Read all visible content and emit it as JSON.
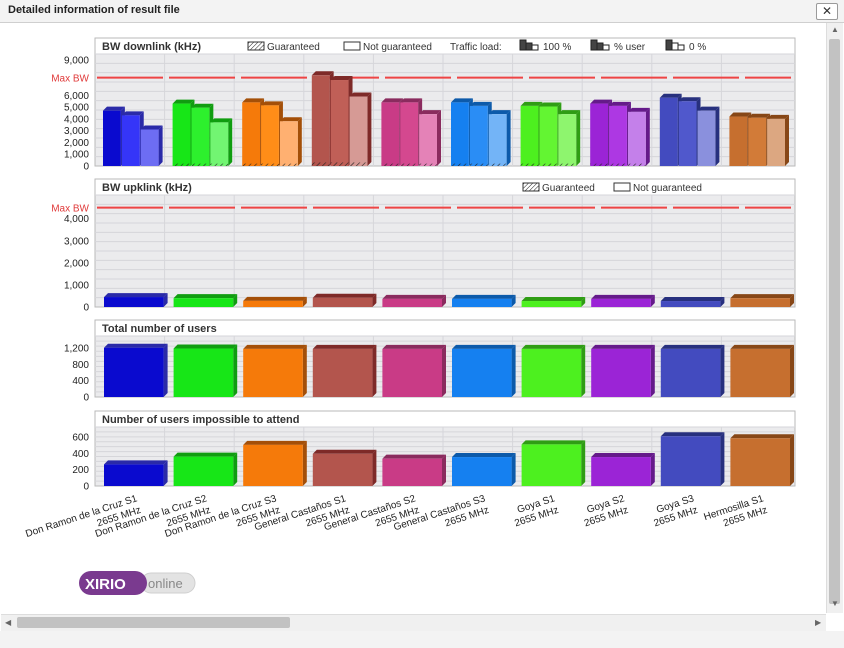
{
  "window": {
    "title": "Detailed information of result file",
    "close_label": "✕"
  },
  "logo": {
    "brand": "XIRIO",
    "suffix": "online"
  },
  "categories": [
    [
      "Don Ramon de la Cruz S1",
      "2655 MHz"
    ],
    [
      "Don Ramon de la Cruz S2",
      "2655 MHz"
    ],
    [
      "Don Ramon de la Cruz S3",
      "2655 MHz"
    ],
    [
      "General Castaños S1",
      "2655 MHz"
    ],
    [
      "General Castaños S2",
      "2655 MHz"
    ],
    [
      "General Castaños S3",
      "2655 MHz"
    ],
    [
      "Goya S1",
      "2655 MHz"
    ],
    [
      "Goya S2",
      "2655 MHz"
    ],
    [
      "Goya S3",
      "2655 MHz"
    ],
    [
      "Hermosilla S1",
      "2655 MHz"
    ]
  ],
  "colors": {
    "main": [
      "#0a0acf",
      "#17e617",
      "#f57a0a",
      "#b3554d",
      "#c93b86",
      "#1580f0",
      "#4df01f",
      "#9b24d6",
      "#434bbf",
      "#c66f2f"
    ],
    "light": [
      "#3535f8",
      "#2df02d",
      "#ff8d18",
      "#c05f57",
      "#d4488f",
      "#2a8df5",
      "#63f532",
      "#ad38e3",
      "#5058cc",
      "#d27b38"
    ],
    "high": [
      "#2a2aa8",
      "#109d10",
      "#a44f08",
      "#7e2a28",
      "#8a2b5e",
      "#0c5aaa",
      "#2f9d14",
      "#651a8a",
      "#27307e",
      "#874717"
    ],
    "low": [
      "#6d6df3",
      "#72f572",
      "#ffb071",
      "#d69a95",
      "#e482b7",
      "#73b4f7",
      "#8ef56e",
      "#c480ea",
      "#8a90dd",
      "#dca781"
    ],
    "maxbw": "#ee4444"
  },
  "chart_data": [
    {
      "type": "bar",
      "title": "BW downlink (kHz)",
      "ylim": [
        0,
        9000
      ],
      "yticks": [
        "0",
        "1,000",
        "2,000",
        "3,000",
        "4,000",
        "5,000",
        "6,000",
        "9,000"
      ],
      "ytick_values": [
        0,
        1000,
        2000,
        3000,
        4000,
        5000,
        6000,
        9000
      ],
      "max_bw_label": "Max BW",
      "max_bw_value": 7500,
      "legend": {
        "guaranteed": "Guaranteed",
        "not_guaranteed": "Not guaranteed",
        "traffic_load": "Traffic load:",
        "load_100": "100 %",
        "load_user": "% user",
        "load_0": "0 %"
      },
      "series": [
        {
          "name": "100 %",
          "values": [
            4700,
            5300,
            5400,
            7700,
            5400,
            5400,
            5100,
            5300,
            5800,
            4200
          ]
        },
        {
          "name": "% user",
          "values": [
            4300,
            4950,
            5150,
            7300,
            5400,
            5100,
            5050,
            5100,
            5500,
            4100
          ]
        },
        {
          "name": "0 %",
          "values": [
            3100,
            3700,
            3800,
            5900,
            4400,
            4400,
            4400,
            4600,
            4700,
            4000
          ]
        }
      ],
      "guaranteed_values": [
        0,
        200,
        200,
        300,
        200,
        200,
        200,
        200,
        0,
        0
      ]
    },
    {
      "type": "bar",
      "title": "BW upklink (kHz)",
      "ylim": [
        0,
        4800
      ],
      "yticks": [
        "0",
        "1,000",
        "2,000",
        "3,000",
        "4,000"
      ],
      "ytick_values": [
        0,
        1000,
        2000,
        3000,
        4000
      ],
      "max_bw_label": "Max BW",
      "max_bw_value": 4500,
      "legend": {
        "guaranteed": "Guaranteed",
        "not_guaranteed": "Not guaranteed"
      },
      "series": [
        {
          "name": "",
          "values": [
            450,
            400,
            280,
            420,
            370,
            370,
            270,
            370,
            270,
            400
          ]
        }
      ]
    },
    {
      "type": "bar",
      "title": "Total number of users",
      "ylim": [
        0,
        1350
      ],
      "yticks": [
        "0",
        "400",
        "800",
        "1,200"
      ],
      "ytick_values": [
        0,
        400,
        800,
        1200
      ],
      "series": [
        {
          "name": "",
          "values": [
            1210,
            1190,
            1180,
            1180,
            1180,
            1180,
            1180,
            1180,
            1180,
            1180
          ]
        }
      ]
    },
    {
      "type": "bar",
      "title": "Number of users impossible to attend",
      "ylim": [
        0,
        650
      ],
      "yticks": [
        "0",
        "200",
        "400",
        "600"
      ],
      "ytick_values": [
        0,
        200,
        400,
        600
      ],
      "series": [
        {
          "name": "",
          "values": [
            265,
            360,
            505,
            395,
            335,
            355,
            510,
            355,
            610,
            585
          ]
        }
      ]
    }
  ]
}
